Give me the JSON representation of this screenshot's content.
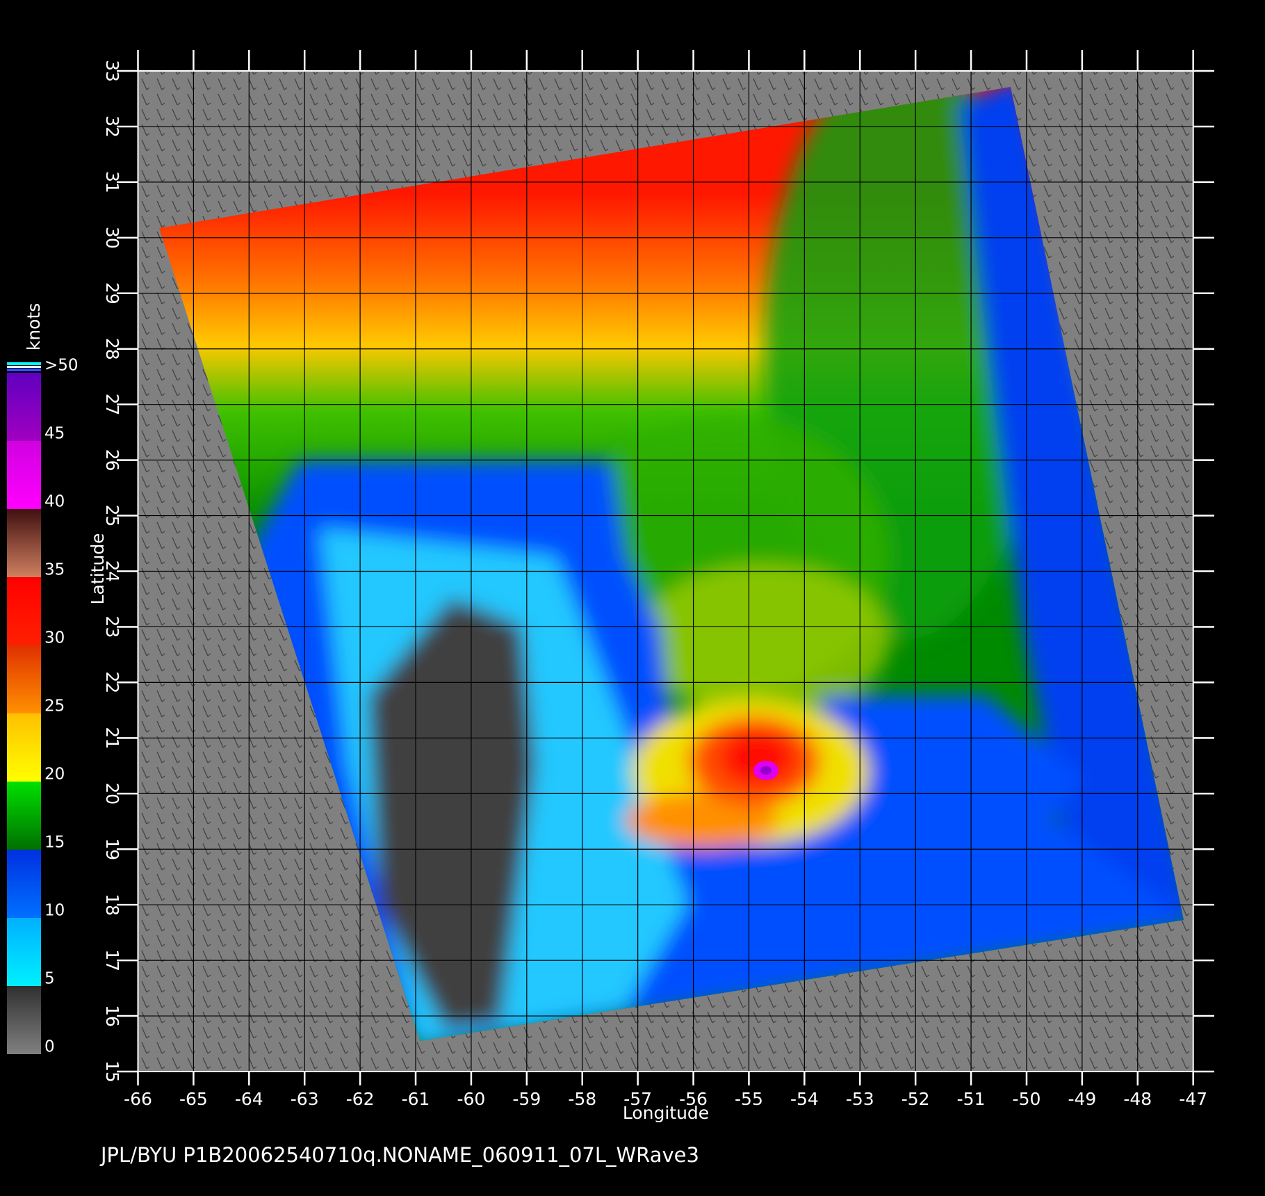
{
  "chart_data": {
    "type": "map",
    "x_label": "Longitude",
    "y_label": "Latitude",
    "xlim": [
      -66,
      -47
    ],
    "ylim": [
      15,
      33
    ],
    "xticks": [
      -66,
      -65,
      -64,
      -63,
      -62,
      -61,
      -60,
      -59,
      -58,
      -57,
      -56,
      -55,
      -54,
      -53,
      -52,
      -51,
      -50,
      -49,
      -48,
      -47
    ],
    "yticks": [
      15,
      16,
      17,
      18,
      19,
      20,
      21,
      22,
      23,
      24,
      25,
      26,
      27,
      28,
      29,
      30,
      31,
      32,
      33
    ],
    "grid": true,
    "background": "#808080",
    "colorbar": {
      "label": "knots",
      "ticks": [
        0,
        5,
        10,
        15,
        20,
        25,
        30,
        35,
        40,
        45,
        {
          "value": 50,
          "label": ">50"
        }
      ],
      "colors": [
        [
          "#808080",
          "#303030"
        ],
        [
          "#00f0ff",
          "#00b0ff"
        ],
        [
          "#0070ff",
          "#0030e0"
        ],
        [
          "#007000",
          "#00e000"
        ],
        [
          "#ffff00",
          "#ffc000"
        ],
        [
          "#ff9000",
          "#e03000"
        ],
        [
          "#ff2000",
          "#ff0000"
        ],
        [
          "#d08060",
          "#401010"
        ],
        [
          "#ff00ff",
          "#d000e0"
        ],
        [
          "#a000c0",
          "#6000c0"
        ]
      ]
    },
    "footer": "JPL/BYU  P1B20062540710q.NONAME_060911_07L_WRave3"
  }
}
